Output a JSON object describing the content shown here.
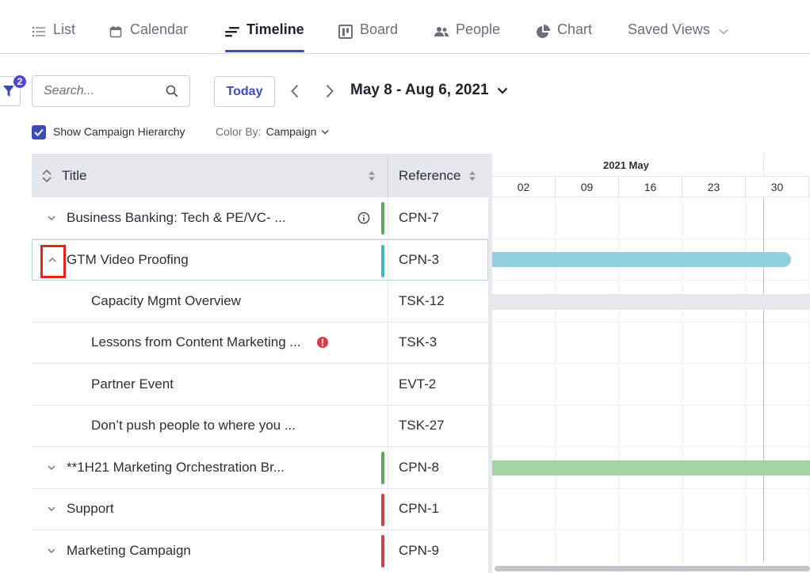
{
  "tabs": [
    {
      "label": "List",
      "icon": "list-icon"
    },
    {
      "label": "Calendar",
      "icon": "calendar-icon"
    },
    {
      "label": "Timeline",
      "icon": "timeline-icon",
      "active": true
    },
    {
      "label": "Board",
      "icon": "board-icon"
    },
    {
      "label": "People",
      "icon": "people-icon"
    },
    {
      "label": "Chart",
      "icon": "pie-chart-icon"
    },
    {
      "label": "Saved Views",
      "icon": "chevron-down-icon"
    }
  ],
  "toolbar": {
    "filter_count": "2",
    "search_placeholder": "Search...",
    "today_label": "Today",
    "date_range": "May 8 - Aug 6, 2021"
  },
  "options": {
    "show_hierarchy_label": "Show Campaign Hierarchy",
    "show_hierarchy_checked": true,
    "color_by_label": "Color By:",
    "color_by_value": "Campaign"
  },
  "grid": {
    "title_header": "Title",
    "reference_header": "Reference",
    "rows": [
      {
        "title": "Business Banking: Tech & PE/VC- ...",
        "ref": "CPN-7",
        "level": 0,
        "expanded": false,
        "color": "#5aac5a",
        "icon": "info-icon"
      },
      {
        "title": "GTM Video Proofing",
        "ref": "CPN-3",
        "level": 0,
        "expanded": true,
        "color": "#45b5c9",
        "selected": true
      },
      {
        "title": "Capacity Mgmt Overview",
        "ref": "TSK-12",
        "level": 1
      },
      {
        "title": "Lessons from Content Marketing ...",
        "ref": "TSK-3",
        "level": 1,
        "icon": "alert-icon"
      },
      {
        "title": "Partner Event",
        "ref": "EVT-2",
        "level": 1
      },
      {
        "title": "Don’t push people to where you ...",
        "ref": "TSK-27",
        "level": 1
      },
      {
        "title": "**1H21 Marketing Orchestration Br...",
        "ref": "CPN-8",
        "level": 0,
        "expanded": false,
        "color": "#5aac5a"
      },
      {
        "title": "Support",
        "ref": "CPN-1",
        "level": 0,
        "expanded": false,
        "color": "#c9444d"
      },
      {
        "title": "Marketing Campaign",
        "ref": "CPN-9",
        "level": 0,
        "expanded": false,
        "color": "#c9444d"
      }
    ]
  },
  "timeline": {
    "month_label": "2021 May",
    "days": [
      "02",
      "09",
      "16",
      "23",
      "30"
    ],
    "bar_colors": {
      "cpn3": "#90d0df",
      "tsk12": "#e6e8f0",
      "cpn8": "#a6d3a2"
    }
  }
}
